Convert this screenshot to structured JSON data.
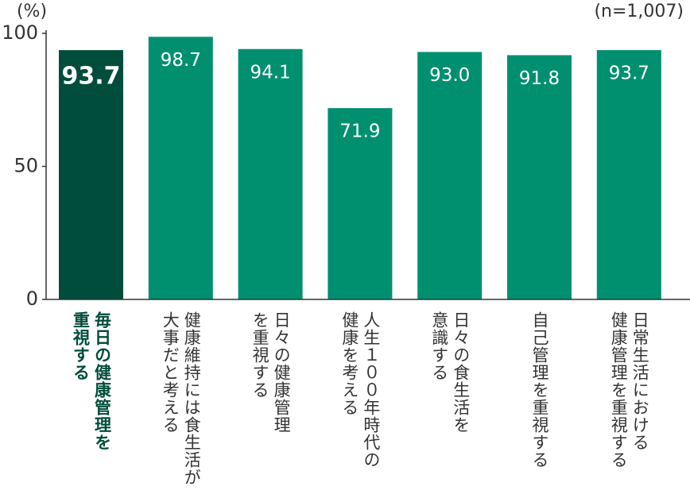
{
  "chart_data": {
    "type": "bar",
    "y_unit": "(%)",
    "note": "(n=1,007)",
    "categories": [
      "毎日の健康管理を\n重視する",
      "健康維持には食生活が\n大事だと考える",
      "日々の健康管理\nを重視する",
      "人生１００年時代の\n健康を考える",
      "日々の食生活を\n意識する",
      "自己管理を重視する",
      "日常生活における\n健康管理を重視する"
    ],
    "values": [
      93.7,
      98.7,
      94.1,
      71.9,
      93.0,
      91.8,
      93.7
    ],
    "value_labels": [
      "93.7",
      "98.7",
      "94.1",
      "71.9",
      "93.0",
      "91.8",
      "93.7"
    ],
    "color": "#00906f",
    "highlight": 0,
    "highlight_color": "#004d3b",
    "ylim": [
      0,
      100
    ],
    "yticks": [
      0,
      50,
      100
    ]
  }
}
